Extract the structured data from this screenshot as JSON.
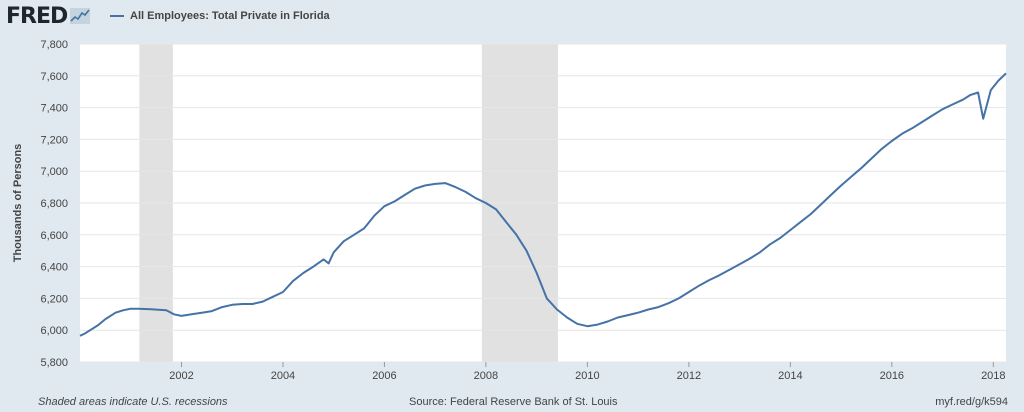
{
  "header": {
    "logo_text": "FRED",
    "logo_icon": "sparkline-chart-icon",
    "series_label": "All Employees: Total Private in Florida"
  },
  "footer": {
    "note": "Shaded areas indicate U.S. recessions",
    "source": "Source: Federal Reserve Bank of St. Louis",
    "short_url": "myf.red/g/k594"
  },
  "colors": {
    "series": "#4572a7",
    "recession": "#e1e1e1",
    "plot_bg": "#ffffff",
    "page_bg": "#e1e9f0"
  },
  "chart_data": {
    "type": "line",
    "title": "",
    "xlabel": "",
    "ylabel": "Thousands of Persons",
    "ylim": [
      5800,
      7800
    ],
    "xlim": [
      2000.0,
      2018.25
    ],
    "grid": true,
    "y_ticks": [
      5800,
      6000,
      6200,
      6400,
      6600,
      6800,
      7000,
      7200,
      7400,
      7600,
      7800
    ],
    "y_tick_labels": [
      "5,800",
      "6,000",
      "6,200",
      "6,400",
      "6,600",
      "6,800",
      "7,000",
      "7,200",
      "7,400",
      "7,600",
      "7,800"
    ],
    "x_ticks": [
      2002,
      2004,
      2006,
      2008,
      2010,
      2012,
      2014,
      2016,
      2018
    ],
    "x_tick_labels": [
      "2002",
      "2004",
      "2006",
      "2008",
      "2010",
      "2012",
      "2014",
      "2016",
      "2018"
    ],
    "recessions": [
      [
        2001.17,
        2001.83
      ],
      [
        2007.92,
        2009.42
      ]
    ],
    "series": [
      {
        "name": "All Employees: Total Private in Florida",
        "x": [
          2000.0,
          2000.1,
          2000.2,
          2000.35,
          2000.5,
          2000.7,
          2000.85,
          2001.0,
          2001.15,
          2001.4,
          2001.7,
          2001.85,
          2002.0,
          2002.2,
          2002.4,
          2002.6,
          2002.8,
          2003.0,
          2003.2,
          2003.4,
          2003.6,
          2003.8,
          2004.0,
          2004.2,
          2004.4,
          2004.6,
          2004.8,
          2004.9,
          2005.0,
          2005.2,
          2005.4,
          2005.6,
          2005.8,
          2006.0,
          2006.2,
          2006.4,
          2006.6,
          2006.8,
          2007.0,
          2007.2,
          2007.4,
          2007.6,
          2007.8,
          2008.0,
          2008.2,
          2008.4,
          2008.6,
          2008.8,
          2009.0,
          2009.2,
          2009.4,
          2009.6,
          2009.8,
          2010.0,
          2010.2,
          2010.4,
          2010.6,
          2010.8,
          2011.0,
          2011.2,
          2011.4,
          2011.6,
          2011.8,
          2012.0,
          2012.2,
          2012.4,
          2012.6,
          2012.8,
          2013.0,
          2013.2,
          2013.4,
          2013.6,
          2013.8,
          2014.0,
          2014.2,
          2014.4,
          2014.6,
          2014.8,
          2015.0,
          2015.2,
          2015.4,
          2015.6,
          2015.8,
          2016.0,
          2016.2,
          2016.4,
          2016.6,
          2016.8,
          2017.0,
          2017.2,
          2017.4,
          2017.55,
          2017.7,
          2017.8,
          2017.95,
          2018.1,
          2018.25
        ],
        "values": [
          5965,
          5980,
          6000,
          6030,
          6070,
          6110,
          6125,
          6135,
          6135,
          6132,
          6125,
          6100,
          6090,
          6100,
          6110,
          6120,
          6145,
          6160,
          6165,
          6165,
          6180,
          6210,
          6240,
          6310,
          6360,
          6400,
          6445,
          6420,
          6490,
          6560,
          6600,
          6640,
          6720,
          6780,
          6810,
          6850,
          6890,
          6910,
          6920,
          6925,
          6900,
          6870,
          6830,
          6800,
          6760,
          6680,
          6600,
          6500,
          6360,
          6200,
          6130,
          6080,
          6040,
          6025,
          6035,
          6055,
          6080,
          6095,
          6110,
          6130,
          6145,
          6170,
          6200,
          6240,
          6280,
          6315,
          6345,
          6380,
          6415,
          6450,
          6490,
          6540,
          6580,
          6630,
          6680,
          6730,
          6790,
          6850,
          6910,
          6965,
          7020,
          7080,
          7140,
          7190,
          7235,
          7270,
          7310,
          7350,
          7390,
          7420,
          7450,
          7480,
          7495,
          7330,
          7510,
          7570,
          7615
        ]
      }
    ]
  }
}
